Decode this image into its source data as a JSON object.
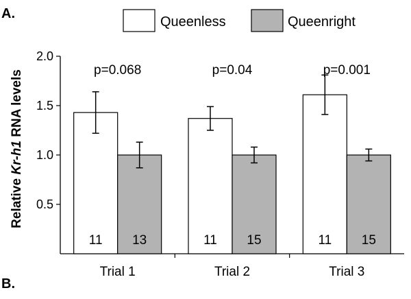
{
  "panel_labels": {
    "top": "A.",
    "bottom": "B."
  },
  "chart_data": {
    "type": "bar",
    "ylabel": {
      "prefix": "Relative ",
      "italic": "Kr-h1",
      "suffix": " RNA levels"
    },
    "ylim": [
      0,
      2.0
    ],
    "yticks": [
      {
        "value": 0.5,
        "label": "0.5"
      },
      {
        "value": 1.0,
        "label": "1.0"
      },
      {
        "value": 1.5,
        "label": "1.5"
      },
      {
        "value": 2.0,
        "label": "2.0"
      }
    ],
    "categories": [
      "Trial 1",
      "Trial 2",
      "Trial 3"
    ],
    "series": [
      {
        "name": "Queenless",
        "color": "#ffffff",
        "values": [
          1.43,
          1.37,
          1.61
        ],
        "errors": [
          0.21,
          0.12,
          0.2
        ],
        "n": [
          "11",
          "11",
          "11"
        ]
      },
      {
        "name": "Queenright",
        "color": "#b3b3b3",
        "values": [
          1.0,
          1.0,
          1.0
        ],
        "errors": [
          0.13,
          0.08,
          0.06
        ],
        "n": [
          "13",
          "15",
          "15"
        ]
      }
    ],
    "annotations": [
      "p=0.068",
      "p=0.04",
      "p=0.001"
    ],
    "legend": "top",
    "grid": false
  }
}
